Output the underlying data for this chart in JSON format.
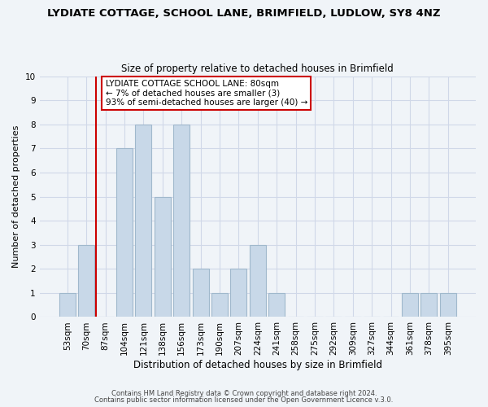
{
  "title_line1": "LYDIATE COTTAGE, SCHOOL LANE, BRIMFIELD, LUDLOW, SY8 4NZ",
  "title_line2": "Size of property relative to detached houses in Brimfield",
  "xlabel": "Distribution of detached houses by size in Brimfield",
  "ylabel": "Number of detached properties",
  "bar_labels": [
    "53sqm",
    "70sqm",
    "87sqm",
    "104sqm",
    "121sqm",
    "138sqm",
    "156sqm",
    "173sqm",
    "190sqm",
    "207sqm",
    "224sqm",
    "241sqm",
    "258sqm",
    "275sqm",
    "292sqm",
    "309sqm",
    "327sqm",
    "344sqm",
    "361sqm",
    "378sqm",
    "395sqm"
  ],
  "bar_values": [
    1,
    3,
    0,
    7,
    8,
    5,
    8,
    2,
    1,
    2,
    3,
    1,
    0,
    0,
    0,
    0,
    0,
    0,
    1,
    1,
    1
  ],
  "bar_color": "#c8d8e8",
  "bar_edge_color": "#a0b8cc",
  "ylim": [
    0,
    10
  ],
  "yticks": [
    0,
    1,
    2,
    3,
    4,
    5,
    6,
    7,
    8,
    9,
    10
  ],
  "vline_color": "#cc0000",
  "annotation_text_line1": "LYDIATE COTTAGE SCHOOL LANE: 80sqm",
  "annotation_text_line2": "← 7% of detached houses are smaller (3)",
  "annotation_text_line3": "93% of semi-detached houses are larger (40) →",
  "footer_line1": "Contains HM Land Registry data © Crown copyright and database right 2024.",
  "footer_line2": "Contains public sector information licensed under the Open Government Licence v.3.0.",
  "grid_color": "#d0d8e8",
  "background_color": "#f0f4f8"
}
